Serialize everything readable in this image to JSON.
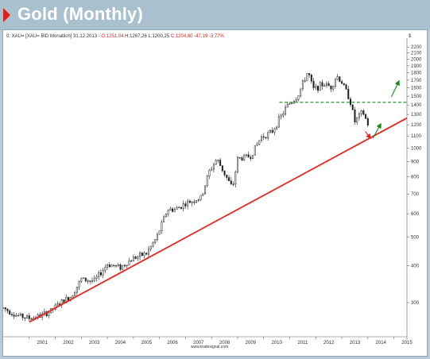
{
  "header": {
    "title": "Gold (Monthly)"
  },
  "chart_header": {
    "text_black": "0: XAU= [XAU= BID Monatlich] 31.12.2013 - ",
    "open": "O:1251,04",
    "high_low": " H:1267,26 L:1200,25 ",
    "close": "C:1204,80 -47,19 -3,77%",
    "currency": "$"
  },
  "watermark": "www.tradesignal.com",
  "colors": {
    "title_bg": "#a9c0cf",
    "accent": "#e0201f",
    "trend": "#e8261f",
    "projection": "#1a8a1a",
    "candle": "#1e1e1e"
  },
  "chart_data": {
    "type": "candlestick",
    "title": "Gold (Monthly)",
    "instrument": "XAU= BID Monatlich",
    "scale": "log",
    "ylim": [
      230,
      2300
    ],
    "y_ticks": [
      300,
      400,
      500,
      600,
      700,
      800,
      900,
      1000,
      1100,
      1200,
      1300,
      1400,
      1500,
      1600,
      1700,
      1800,
      1900,
      2000,
      2100,
      2200
    ],
    "x_ticks": [
      "2001",
      "2002",
      "2003",
      "2004",
      "2005",
      "2006",
      "2007",
      "2008",
      "2009",
      "2010",
      "2011",
      "2012",
      "2013",
      "2014",
      "2015"
    ],
    "xlim": [
      2000.0,
      2015.5
    ],
    "series_closes": [
      [
        2000.0,
        288
      ],
      [
        2000.5,
        272
      ],
      [
        2001.0,
        266
      ],
      [
        2001.4,
        270
      ],
      [
        2001.8,
        280
      ],
      [
        2002.2,
        300
      ],
      [
        2002.6,
        315
      ],
      [
        2003.0,
        360
      ],
      [
        2003.5,
        355
      ],
      [
        2004.0,
        405
      ],
      [
        2004.5,
        395
      ],
      [
        2005.0,
        425
      ],
      [
        2005.5,
        440
      ],
      [
        2005.9,
        500
      ],
      [
        2006.3,
        620
      ],
      [
        2006.6,
        620
      ],
      [
        2007.0,
        650
      ],
      [
        2007.6,
        680
      ],
      [
        2007.9,
        830
      ],
      [
        2008.2,
        920
      ],
      [
        2008.8,
        730
      ],
      [
        2009.0,
        920
      ],
      [
        2009.5,
        940
      ],
      [
        2009.9,
        1090
      ],
      [
        2010.3,
        1130
      ],
      [
        2010.9,
        1390
      ],
      [
        2011.3,
        1500
      ],
      [
        2011.7,
        1820
      ],
      [
        2011.9,
        1580
      ],
      [
        2012.3,
        1650
      ],
      [
        2012.6,
        1610
      ],
      [
        2012.8,
        1760
      ],
      [
        2013.0,
        1670
      ],
      [
        2013.3,
        1470
      ],
      [
        2013.5,
        1230
      ],
      [
        2013.8,
        1330
      ],
      [
        2014.0,
        1205
      ]
    ],
    "trendline": {
      "start": [
        2001.0,
        258
      ],
      "end": [
        2015.5,
        1265
      ],
      "color": "#e8261f"
    },
    "resistance_line": {
      "y": 1430,
      "x_from": 2010.6,
      "x_to": 2015.5,
      "style": "dashed",
      "color": "#1a8a1a"
    },
    "projection_path": [
      [
        2013.9,
        1140
      ],
      [
        2014.1,
        1080
      ],
      [
        2014.5,
        1210
      ],
      [
        2014.9,
        1490
      ],
      [
        2015.2,
        1690
      ]
    ],
    "grid": false
  }
}
